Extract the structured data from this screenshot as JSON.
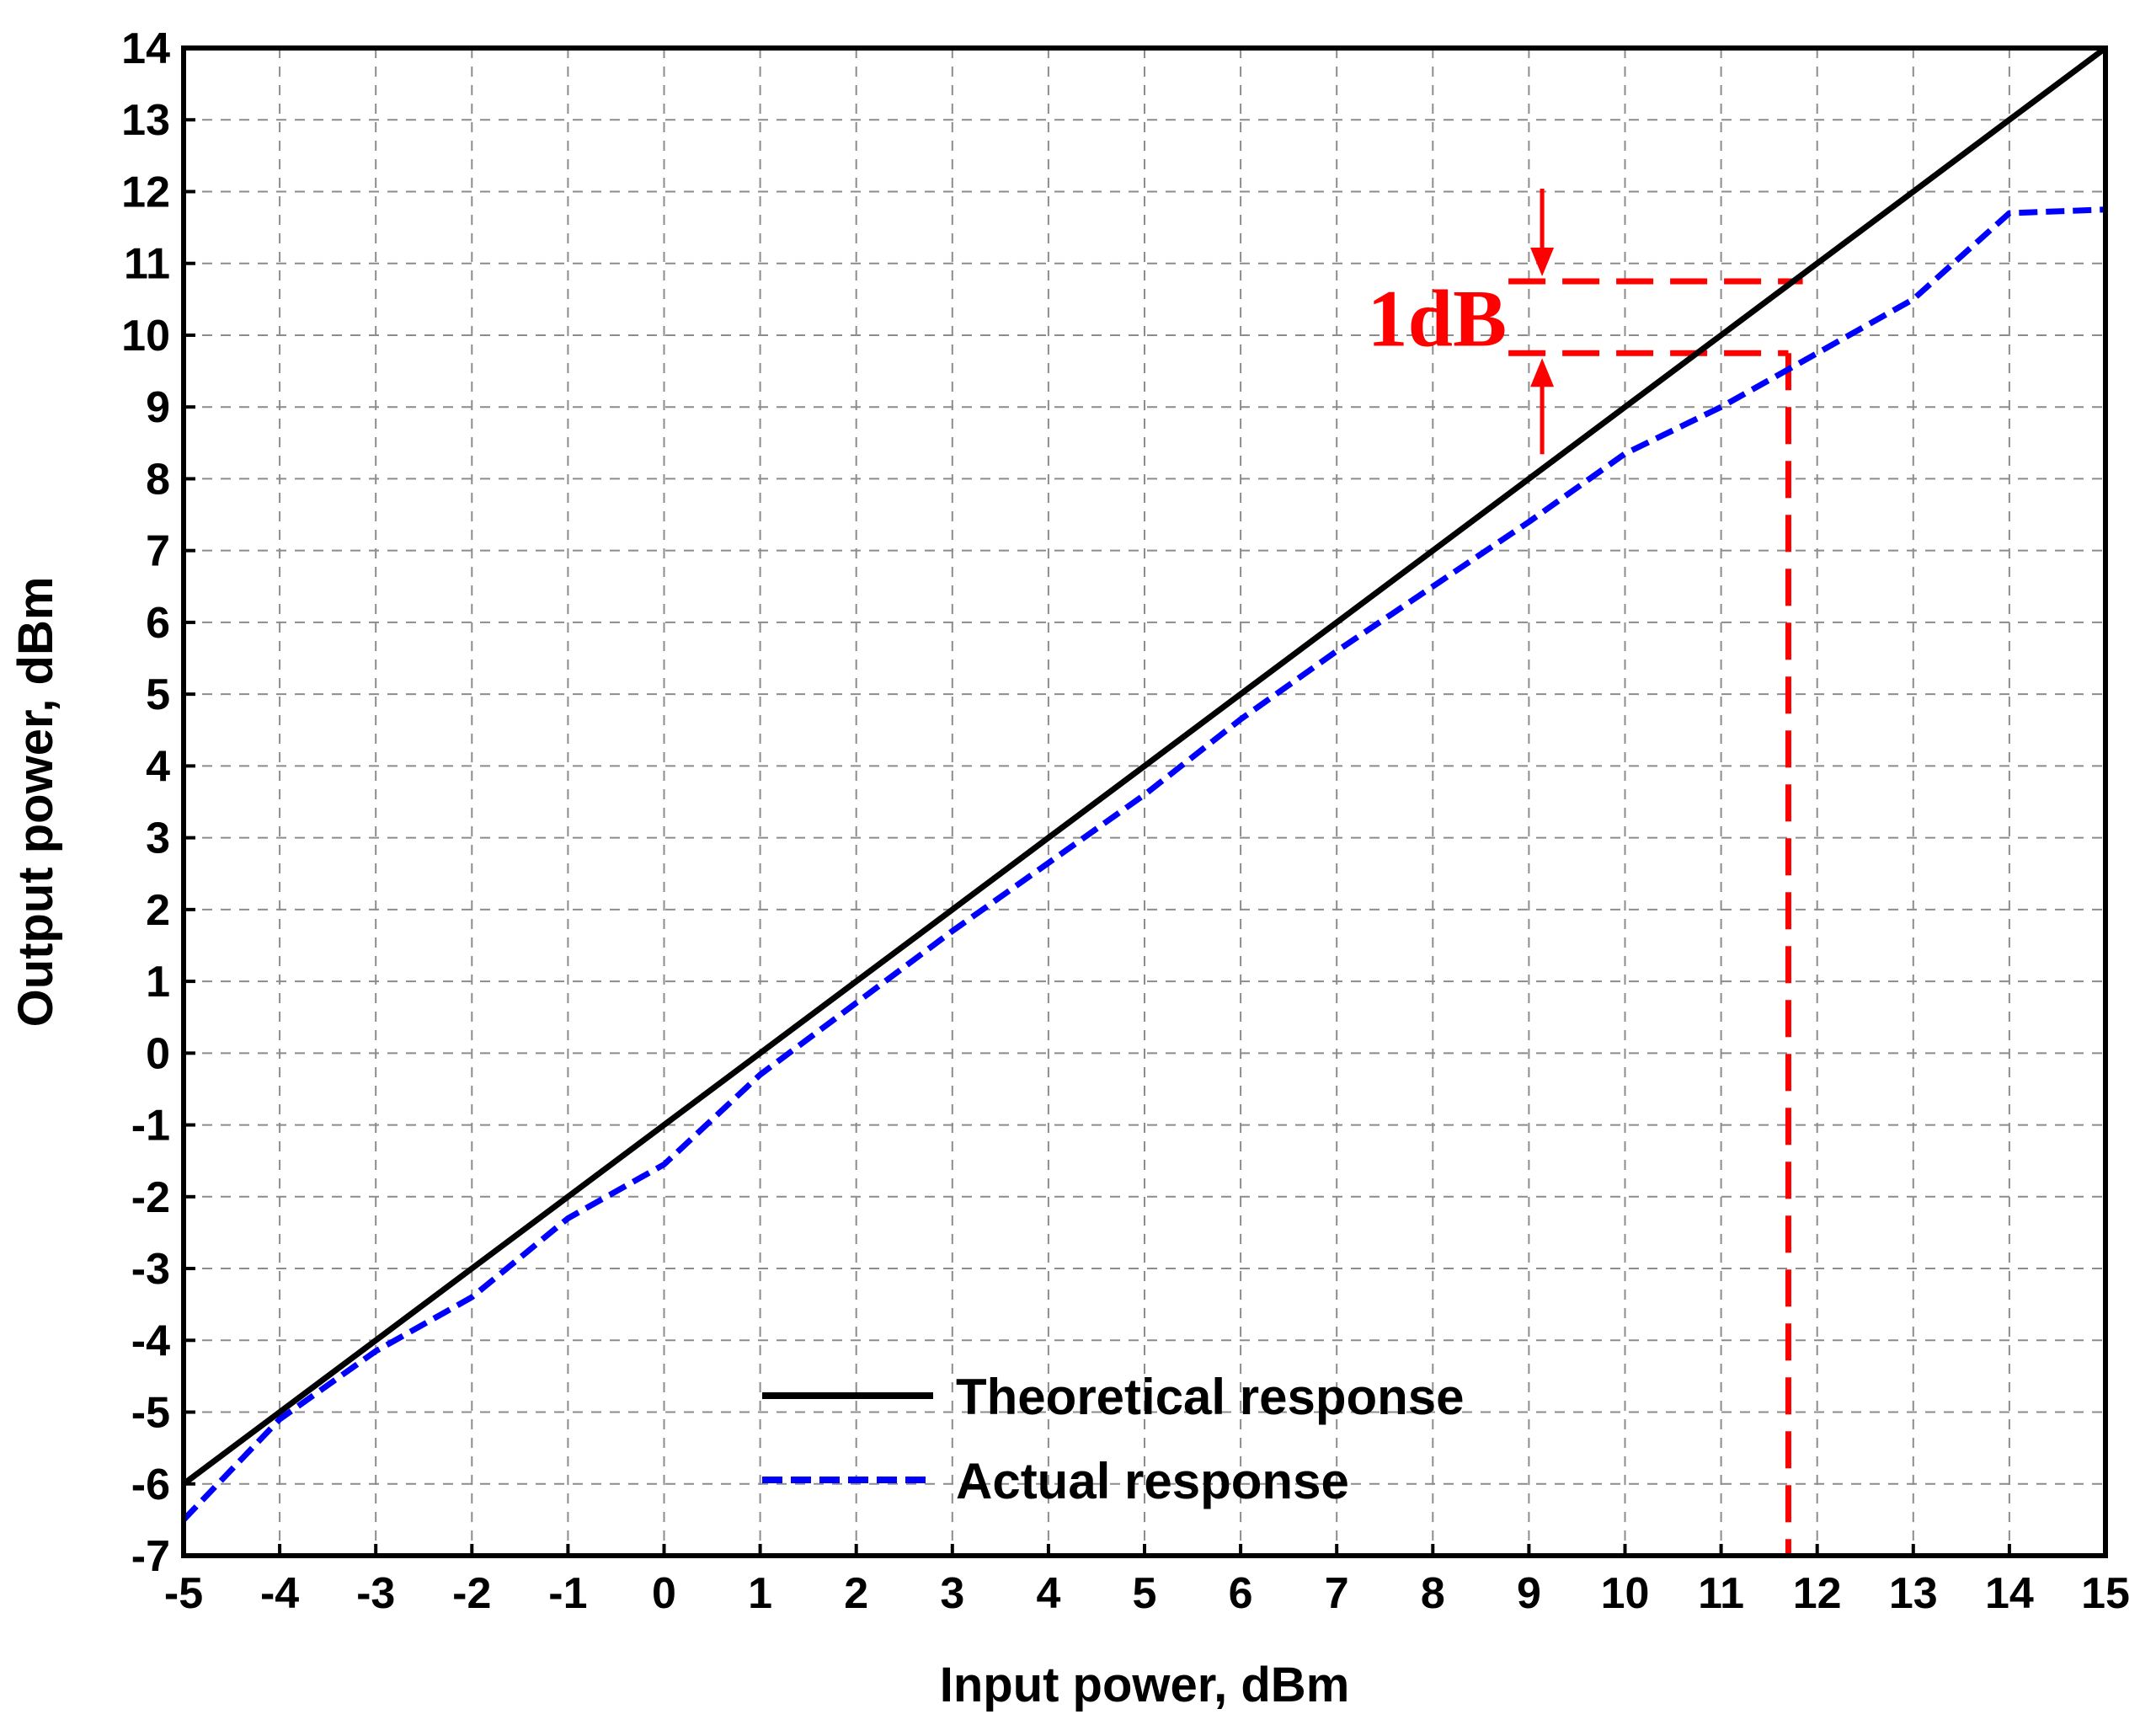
{
  "chart_data": {
    "type": "line",
    "title": "",
    "xlabel": "Input power, dBm",
    "ylabel": "Output power, dBm",
    "xlim": [
      -5,
      15
    ],
    "ylim": [
      -7,
      14
    ],
    "xticks": [
      -5,
      -4,
      -3,
      -2,
      -1,
      0,
      1,
      2,
      3,
      4,
      5,
      6,
      7,
      8,
      9,
      10,
      11,
      12,
      13,
      14,
      15
    ],
    "yticks": [
      -7,
      -6,
      -5,
      -4,
      -3,
      -2,
      -1,
      0,
      1,
      2,
      3,
      4,
      5,
      6,
      7,
      8,
      9,
      10,
      11,
      12,
      13,
      14
    ],
    "grid": true,
    "legend_position": "bottom-center",
    "series": [
      {
        "name": "Theoretical response",
        "color": "#000000",
        "style": "solid",
        "x": [
          -5,
          -4,
          -3,
          -2,
          -1,
          0,
          1,
          2,
          3,
          4,
          5,
          6,
          7,
          8,
          9,
          10,
          11,
          12,
          13,
          14,
          15
        ],
        "y": [
          -6,
          -5,
          -4,
          -3,
          -2,
          -1,
          0,
          1,
          2,
          3,
          4,
          5,
          6,
          7,
          8,
          9,
          10,
          11,
          12,
          13,
          14
        ]
      },
      {
        "name": "Actual response",
        "color": "#0000ff",
        "style": "dashed",
        "x": [
          -5,
          -4,
          -3,
          -2,
          -1,
          0,
          1,
          2,
          3,
          4,
          5,
          6,
          7,
          8,
          9,
          10,
          11,
          12,
          13,
          14,
          15
        ],
        "y": [
          -6.5,
          -5.1,
          -4.15,
          -3.4,
          -2.3,
          -1.55,
          -0.3,
          0.7,
          1.7,
          2.65,
          3.6,
          4.65,
          5.6,
          6.5,
          7.4,
          8.35,
          9.0,
          9.75,
          10.5,
          11.7,
          11.75
        ]
      }
    ],
    "annotation": {
      "label": "1dB",
      "color": "#ff0000",
      "x_compression": 11.7,
      "y_theoretical": 10.75,
      "y_actual": 9.75,
      "x_label": 9.05
    }
  }
}
